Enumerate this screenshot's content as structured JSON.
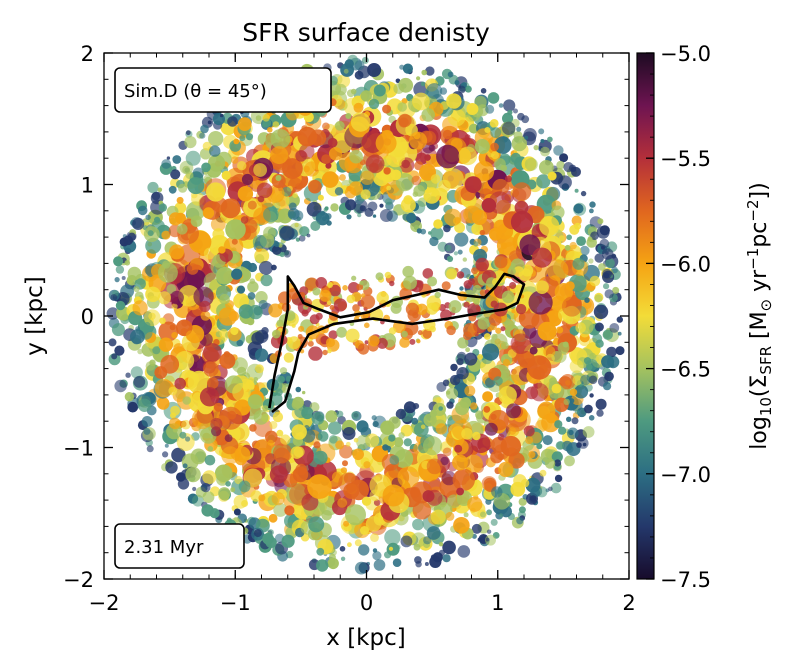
{
  "chart_data": {
    "type": "heatmap",
    "title": "SFR surface denisty",
    "xlabel": "x [kpc]",
    "ylabel": "y [kpc]",
    "xlim": [
      -2,
      2
    ],
    "ylim": [
      -2,
      2
    ],
    "x_ticks": [
      -2,
      -1,
      0,
      1,
      2
    ],
    "y_ticks": [
      -2,
      -1,
      0,
      1,
      2
    ],
    "x_tick_labels": [
      "−2",
      "−1",
      "0",
      "1",
      "2"
    ],
    "y_tick_labels": [
      "−2",
      "−1",
      "0",
      "1",
      "2"
    ],
    "annotations": {
      "simulation": "Sim.D (θ = 45°)",
      "time": "2.31 Myr"
    },
    "colorbar": {
      "label": "log10(ΣSFR [M⊙ yr−1pc−2])",
      "label_parts": {
        "prefix": "log",
        "prefix_sub": "10",
        "open": "(Σ",
        "sigma_sub": "SFR",
        "mid": " [M",
        "sun_sub": "⊙",
        "yr": " yr",
        "yr_sup": "−1",
        "pc": "pc",
        "pc_sup": "−2",
        "close": "])"
      },
      "range": [
        -7.5,
        -5.0
      ],
      "ticks": [
        -7.5,
        -7.0,
        -6.5,
        -6.0,
        -5.5,
        -5.0
      ],
      "tick_labels": [
        "−7.5",
        "−7.0",
        "−6.5",
        "−6.0",
        "−5.5",
        "−5.0"
      ],
      "colormap": [
        "#170b2b",
        "#24386b",
        "#2c6e83",
        "#4e9a80",
        "#a4c25f",
        "#f3dc38",
        "#f5a313",
        "#e0661f",
        "#b42f3a",
        "#6e1451",
        "#1d0b22"
      ]
    },
    "structure": {
      "description_free": true,
      "ring_inner_radius_kpc": 0.75,
      "ring_outer_radius_kpc": 1.95,
      "outline_contour_kpc": [
        [
          -0.72,
          -0.73
        ],
        [
          -0.62,
          -0.65
        ],
        [
          -0.55,
          -0.42
        ],
        [
          -0.52,
          -0.28
        ],
        [
          -0.44,
          -0.14
        ],
        [
          -0.25,
          -0.06
        ],
        [
          0.05,
          -0.02
        ],
        [
          0.35,
          -0.06
        ],
        [
          0.62,
          -0.02
        ],
        [
          0.85,
          0.02
        ],
        [
          1.05,
          0.05
        ],
        [
          1.15,
          0.1
        ],
        [
          1.2,
          0.24
        ],
        [
          1.12,
          0.3
        ],
        [
          1.05,
          0.32
        ],
        [
          0.98,
          0.22
        ],
        [
          0.9,
          0.14
        ],
        [
          0.72,
          0.16
        ],
        [
          0.55,
          0.2
        ],
        [
          0.38,
          0.16
        ],
        [
          0.2,
          0.12
        ],
        [
          0.02,
          0.03
        ],
        [
          -0.2,
          -0.01
        ],
        [
          -0.36,
          0.05
        ],
        [
          -0.48,
          0.1
        ],
        [
          -0.55,
          0.23
        ],
        [
          -0.6,
          0.3
        ],
        [
          -0.6,
          0.05
        ],
        [
          -0.65,
          -0.22
        ],
        [
          -0.7,
          -0.45
        ],
        [
          -0.74,
          -0.7
        ]
      ]
    }
  }
}
